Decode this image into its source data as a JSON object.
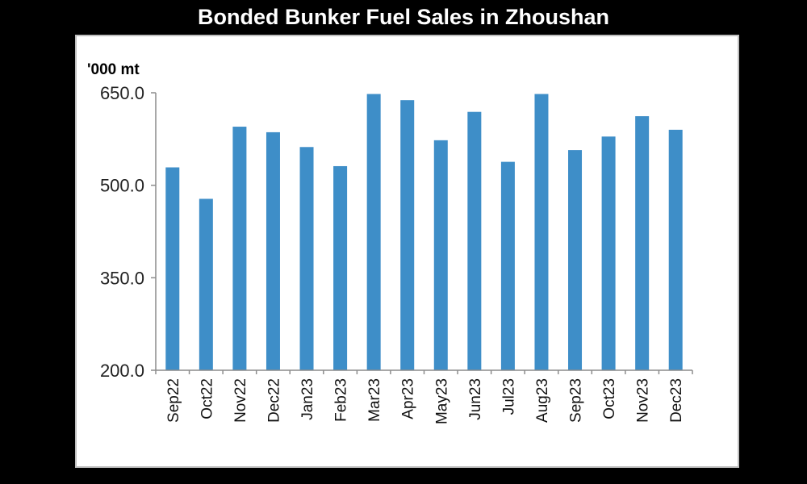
{
  "chart_data": {
    "type": "bar",
    "title": "Bonded Bunker Fuel Sales in Zhoushan",
    "ylabel": "'000 mt",
    "xlabel": "",
    "ylim": [
      200,
      650
    ],
    "yticks": [
      200.0,
      350.0,
      500.0,
      650.0
    ],
    "ytick_labels": [
      "200.0",
      "350.0",
      "500.0",
      "650.0"
    ],
    "grid": false,
    "legend": "none",
    "bar_color": "#3E8EC8",
    "categories": [
      "Sep22",
      "Oct22",
      "Nov22",
      "Dec22",
      "Jan23",
      "Feb23",
      "Mar23",
      "Apr23",
      "May23",
      "Jun23",
      "Jul23",
      "Aug23",
      "Sep23",
      "Oct23",
      "Nov23",
      "Dec23"
    ],
    "values": [
      529,
      478,
      595,
      586,
      562,
      531,
      648,
      638,
      573,
      619,
      538,
      648,
      557,
      579,
      612,
      590
    ]
  }
}
